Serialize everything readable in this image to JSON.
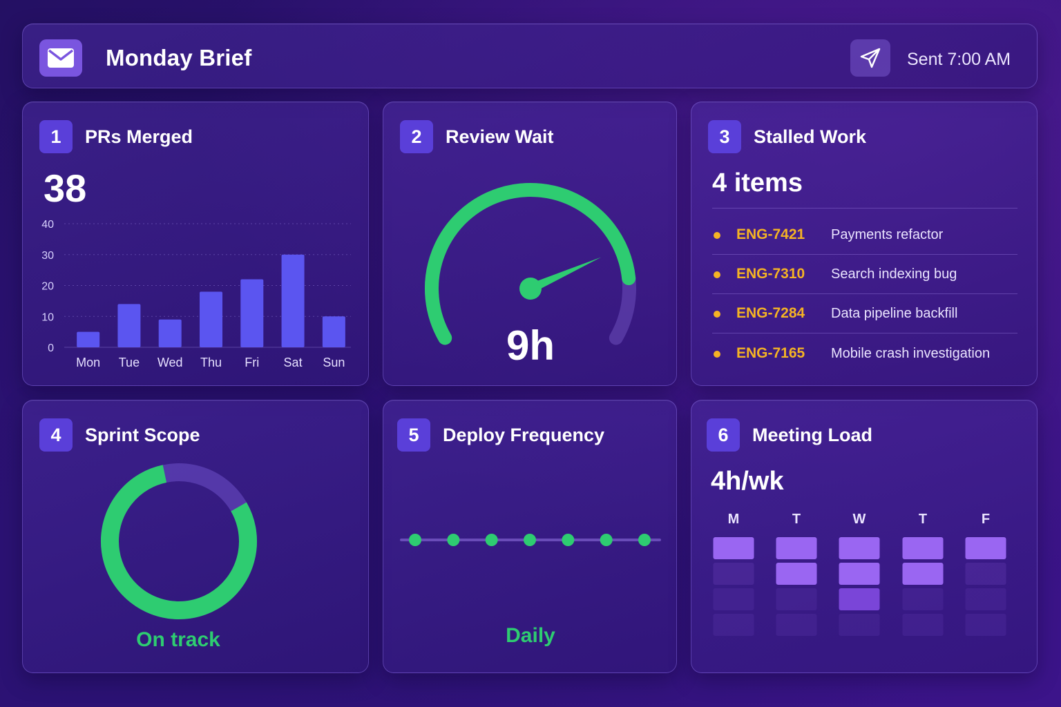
{
  "header": {
    "title": "Monday Brief",
    "sent_label": "Sent 7:00 AM",
    "icons": {
      "left": "mail-icon",
      "right": "send-icon"
    }
  },
  "colors": {
    "accent_bar": "#5b55f0",
    "success": "#2ecc71",
    "warning": "#f5b324",
    "badge": "#5a3fd9",
    "meeting_block": "#9a66f2"
  },
  "cards": {
    "prs": {
      "number": "1",
      "title": "PRs Merged",
      "value": "38",
      "chart_data": {
        "type": "bar",
        "categories": [
          "Mon",
          "Tue",
          "Wed",
          "Thu",
          "Fri",
          "Sat",
          "Sun"
        ],
        "values": [
          5,
          14,
          9,
          18,
          22,
          30,
          10
        ],
        "y_ticks": [
          "0",
          "10",
          "20",
          "30",
          "40"
        ],
        "ylim": [
          0,
          40
        ],
        "grid": true
      }
    },
    "review": {
      "number": "2",
      "title": "Review Wait",
      "value": "9h",
      "gauge_fraction": 0.85
    },
    "stalled": {
      "number": "3",
      "title": "Stalled Work",
      "value": "4 items",
      "items": [
        {
          "id": "ENG-7421",
          "desc": "Payments refactor"
        },
        {
          "id": "ENG-7310",
          "desc": "Search indexing bug"
        },
        {
          "id": "ENG-7284",
          "desc": "Data pipeline backfill"
        },
        {
          "id": "ENG-7165",
          "desc": "Mobile crash investigation"
        }
      ]
    },
    "sprint": {
      "number": "4",
      "title": "Sprint Scope",
      "status": "On track",
      "progress_fraction": 0.8
    },
    "deploy": {
      "number": "5",
      "title": "Deploy Frequency",
      "status": "Daily",
      "dot_count": 7
    },
    "meeting": {
      "number": "6",
      "title": "Meeting Load",
      "value": "4h/wk",
      "days": [
        "M",
        "T",
        "W",
        "T",
        "F"
      ],
      "filled_blocks": [
        1,
        2,
        3,
        2,
        1
      ]
    }
  }
}
